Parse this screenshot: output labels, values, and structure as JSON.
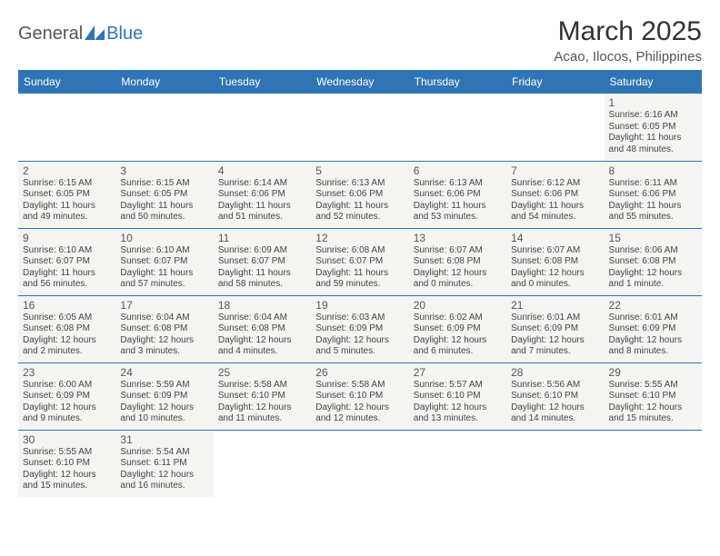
{
  "logo": {
    "text_gray": "General",
    "text_blue": "Blue",
    "triangle_color": "#2f75b5"
  },
  "header": {
    "month_title": "March 2025",
    "location": "Acao, Ilocos, Philippines"
  },
  "colors": {
    "header_bg": "#2f75b5",
    "header_text": "#ffffff",
    "cell_bg": "#f4f4f2",
    "border": "#2f75b5"
  },
  "weekdays": [
    "Sunday",
    "Monday",
    "Tuesday",
    "Wednesday",
    "Thursday",
    "Friday",
    "Saturday"
  ],
  "weeks": [
    [
      {
        "empty": true
      },
      {
        "empty": true
      },
      {
        "empty": true
      },
      {
        "empty": true
      },
      {
        "empty": true
      },
      {
        "empty": true
      },
      {
        "day": "1",
        "sunrise": "Sunrise: 6:16 AM",
        "sunset": "Sunset: 6:05 PM",
        "daylight": "Daylight: 11 hours and 48 minutes."
      }
    ],
    [
      {
        "day": "2",
        "sunrise": "Sunrise: 6:15 AM",
        "sunset": "Sunset: 6:05 PM",
        "daylight": "Daylight: 11 hours and 49 minutes."
      },
      {
        "day": "3",
        "sunrise": "Sunrise: 6:15 AM",
        "sunset": "Sunset: 6:05 PM",
        "daylight": "Daylight: 11 hours and 50 minutes."
      },
      {
        "day": "4",
        "sunrise": "Sunrise: 6:14 AM",
        "sunset": "Sunset: 6:06 PM",
        "daylight": "Daylight: 11 hours and 51 minutes."
      },
      {
        "day": "5",
        "sunrise": "Sunrise: 6:13 AM",
        "sunset": "Sunset: 6:06 PM",
        "daylight": "Daylight: 11 hours and 52 minutes."
      },
      {
        "day": "6",
        "sunrise": "Sunrise: 6:13 AM",
        "sunset": "Sunset: 6:06 PM",
        "daylight": "Daylight: 11 hours and 53 minutes."
      },
      {
        "day": "7",
        "sunrise": "Sunrise: 6:12 AM",
        "sunset": "Sunset: 6:06 PM",
        "daylight": "Daylight: 11 hours and 54 minutes."
      },
      {
        "day": "8",
        "sunrise": "Sunrise: 6:11 AM",
        "sunset": "Sunset: 6:06 PM",
        "daylight": "Daylight: 11 hours and 55 minutes."
      }
    ],
    [
      {
        "day": "9",
        "sunrise": "Sunrise: 6:10 AM",
        "sunset": "Sunset: 6:07 PM",
        "daylight": "Daylight: 11 hours and 56 minutes."
      },
      {
        "day": "10",
        "sunrise": "Sunrise: 6:10 AM",
        "sunset": "Sunset: 6:07 PM",
        "daylight": "Daylight: 11 hours and 57 minutes."
      },
      {
        "day": "11",
        "sunrise": "Sunrise: 6:09 AM",
        "sunset": "Sunset: 6:07 PM",
        "daylight": "Daylight: 11 hours and 58 minutes."
      },
      {
        "day": "12",
        "sunrise": "Sunrise: 6:08 AM",
        "sunset": "Sunset: 6:07 PM",
        "daylight": "Daylight: 11 hours and 59 minutes."
      },
      {
        "day": "13",
        "sunrise": "Sunrise: 6:07 AM",
        "sunset": "Sunset: 6:08 PM",
        "daylight": "Daylight: 12 hours and 0 minutes."
      },
      {
        "day": "14",
        "sunrise": "Sunrise: 6:07 AM",
        "sunset": "Sunset: 6:08 PM",
        "daylight": "Daylight: 12 hours and 0 minutes."
      },
      {
        "day": "15",
        "sunrise": "Sunrise: 6:06 AM",
        "sunset": "Sunset: 6:08 PM",
        "daylight": "Daylight: 12 hours and 1 minute."
      }
    ],
    [
      {
        "day": "16",
        "sunrise": "Sunrise: 6:05 AM",
        "sunset": "Sunset: 6:08 PM",
        "daylight": "Daylight: 12 hours and 2 minutes."
      },
      {
        "day": "17",
        "sunrise": "Sunrise: 6:04 AM",
        "sunset": "Sunset: 6:08 PM",
        "daylight": "Daylight: 12 hours and 3 minutes."
      },
      {
        "day": "18",
        "sunrise": "Sunrise: 6:04 AM",
        "sunset": "Sunset: 6:08 PM",
        "daylight": "Daylight: 12 hours and 4 minutes."
      },
      {
        "day": "19",
        "sunrise": "Sunrise: 6:03 AM",
        "sunset": "Sunset: 6:09 PM",
        "daylight": "Daylight: 12 hours and 5 minutes."
      },
      {
        "day": "20",
        "sunrise": "Sunrise: 6:02 AM",
        "sunset": "Sunset: 6:09 PM",
        "daylight": "Daylight: 12 hours and 6 minutes."
      },
      {
        "day": "21",
        "sunrise": "Sunrise: 6:01 AM",
        "sunset": "Sunset: 6:09 PM",
        "daylight": "Daylight: 12 hours and 7 minutes."
      },
      {
        "day": "22",
        "sunrise": "Sunrise: 6:01 AM",
        "sunset": "Sunset: 6:09 PM",
        "daylight": "Daylight: 12 hours and 8 minutes."
      }
    ],
    [
      {
        "day": "23",
        "sunrise": "Sunrise: 6:00 AM",
        "sunset": "Sunset: 6:09 PM",
        "daylight": "Daylight: 12 hours and 9 minutes."
      },
      {
        "day": "24",
        "sunrise": "Sunrise: 5:59 AM",
        "sunset": "Sunset: 6:09 PM",
        "daylight": "Daylight: 12 hours and 10 minutes."
      },
      {
        "day": "25",
        "sunrise": "Sunrise: 5:58 AM",
        "sunset": "Sunset: 6:10 PM",
        "daylight": "Daylight: 12 hours and 11 minutes."
      },
      {
        "day": "26",
        "sunrise": "Sunrise: 5:58 AM",
        "sunset": "Sunset: 6:10 PM",
        "daylight": "Daylight: 12 hours and 12 minutes."
      },
      {
        "day": "27",
        "sunrise": "Sunrise: 5:57 AM",
        "sunset": "Sunset: 6:10 PM",
        "daylight": "Daylight: 12 hours and 13 minutes."
      },
      {
        "day": "28",
        "sunrise": "Sunrise: 5:56 AM",
        "sunset": "Sunset: 6:10 PM",
        "daylight": "Daylight: 12 hours and 14 minutes."
      },
      {
        "day": "29",
        "sunrise": "Sunrise: 5:55 AM",
        "sunset": "Sunset: 6:10 PM",
        "daylight": "Daylight: 12 hours and 15 minutes."
      }
    ],
    [
      {
        "day": "30",
        "sunrise": "Sunrise: 5:55 AM",
        "sunset": "Sunset: 6:10 PM",
        "daylight": "Daylight: 12 hours and 15 minutes."
      },
      {
        "day": "31",
        "sunrise": "Sunrise: 5:54 AM",
        "sunset": "Sunset: 6:11 PM",
        "daylight": "Daylight: 12 hours and 16 minutes."
      },
      {
        "empty_last": true
      },
      {
        "empty_last": true
      },
      {
        "empty_last": true
      },
      {
        "empty_last": true
      },
      {
        "empty_last": true
      }
    ]
  ]
}
